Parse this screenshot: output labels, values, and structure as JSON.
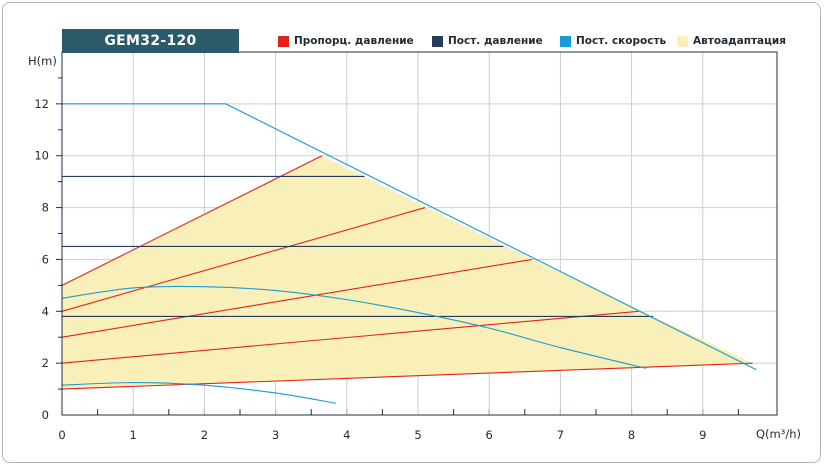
{
  "chart_data": {
    "type": "line",
    "title": "GEM32-120",
    "xlabel": "Q(m³/h)",
    "ylabel": "H(m)",
    "xlim": [
      0,
      10
    ],
    "ylim": [
      0,
      14
    ],
    "x_ticks": [
      0,
      1,
      2,
      3,
      4,
      5,
      6,
      7,
      8,
      9
    ],
    "y_ticks": [
      0,
      2,
      4,
      6,
      8,
      10,
      12
    ],
    "grid": true,
    "legend_placement": "top",
    "legend": [
      {
        "name": "Пропорц. давление",
        "color": "#e2231a"
      },
      {
        "name": "Пост. давление",
        "color": "#263b5c"
      },
      {
        "name": "Пост. скорость",
        "color": "#1a9ad6"
      },
      {
        "name": "Автоадаптация",
        "color": "#f8f0b8"
      }
    ],
    "autoadapt_region": [
      [
        0,
        1
      ],
      [
        0,
        5
      ],
      [
        3.65,
        10
      ],
      [
        6.6,
        6
      ],
      [
        9.7,
        2
      ],
      [
        0,
        1
      ]
    ],
    "series": [
      {
        "name": "Пропорц. давление",
        "curves": [
          [
            [
              0,
              5
            ],
            [
              3.65,
              10
            ]
          ],
          [
            [
              0,
              4
            ],
            [
              5.1,
              8
            ]
          ],
          [
            [
              0,
              3
            ],
            [
              6.6,
              6
            ]
          ],
          [
            [
              0,
              2
            ],
            [
              8.1,
              4
            ]
          ],
          [
            [
              0,
              1
            ],
            [
              9.7,
              2
            ]
          ]
        ]
      },
      {
        "name": "Пост. давление",
        "curves": [
          [
            [
              0,
              9.2
            ],
            [
              4.25,
              9.2
            ]
          ],
          [
            [
              0,
              6.5
            ],
            [
              6.2,
              6.5
            ]
          ],
          [
            [
              0,
              3.8
            ],
            [
              8.3,
              3.8
            ]
          ]
        ]
      },
      {
        "name": "Пост. скорость",
        "curves": [
          [
            [
              0,
              12
            ],
            [
              2.3,
              12
            ],
            [
              9.75,
              1.75
            ]
          ],
          [
            [
              0,
              4.5
            ],
            [
              1,
              4.9
            ],
            [
              2,
              4.95
            ],
            [
              3,
              4.8
            ],
            [
              4,
              4.45
            ],
            [
              5,
              3.95
            ],
            [
              6,
              3.35
            ],
            [
              7,
              2.6
            ],
            [
              8.2,
              1.8
            ]
          ],
          [
            [
              0,
              1.15
            ],
            [
              1,
              1.25
            ],
            [
              2,
              1.15
            ],
            [
              3,
              0.85
            ],
            [
              3.85,
              0.45
            ]
          ]
        ]
      }
    ]
  }
}
